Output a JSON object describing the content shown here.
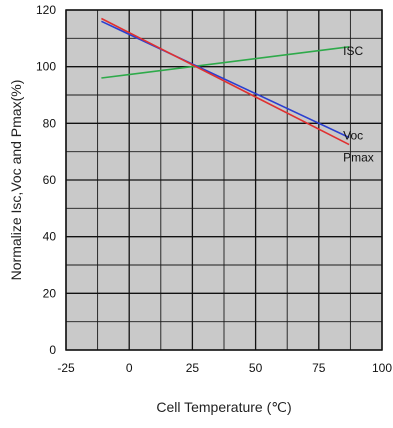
{
  "chart_data": {
    "type": "line",
    "xlabel": "Cell Temperature (℃)",
    "ylabel": "Normalize Isc,Voc and Pmax(%)",
    "xlim": [
      -25,
      100
    ],
    "ylim": [
      0,
      120
    ],
    "x_ticks": [
      "-25",
      "0",
      "25",
      "50",
      "75",
      "100"
    ],
    "y_ticks": [
      "0",
      "20",
      "40",
      "60",
      "80",
      "100",
      "120"
    ],
    "grid": true,
    "series": [
      {
        "name": "ISC",
        "color": "#2eaa4a",
        "x": [
          -11,
          87
        ],
        "y": [
          96,
          107
        ]
      },
      {
        "name": "Voc",
        "color": "#2b3fd0",
        "x": [
          -11,
          87
        ],
        "y": [
          116,
          75
        ]
      },
      {
        "name": "Pmax",
        "color": "#e03030",
        "x": [
          -11,
          87
        ],
        "y": [
          117,
          72.5
        ]
      }
    ]
  }
}
